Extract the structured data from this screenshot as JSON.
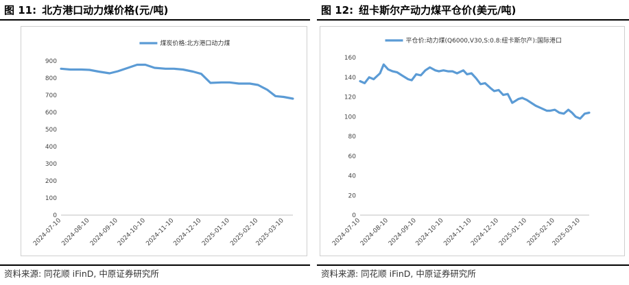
{
  "figures": [
    {
      "fig_no": "图 11:",
      "fig_title": "北方港口动力煤价格(元/吨)",
      "source": "资料来源: 同花顺 iFinD, 中原证券研究所"
    },
    {
      "fig_no": "图 12:",
      "fig_title": "纽卡斯尔产动力煤平仓价(美元/吨)",
      "source": "资料来源: 同花顺 iFinD, 中原证券研究所"
    }
  ],
  "chart_data": [
    {
      "type": "line",
      "title": "",
      "series": [
        {
          "name": "煤炭价格:北方港口动力煤",
          "color": "#5b9bd5",
          "x": [
            "2024-07-10",
            "2024-07-20",
            "2024-08-01",
            "2024-08-10",
            "2024-08-20",
            "2024-09-01",
            "2024-09-10",
            "2024-09-20",
            "2024-10-01",
            "2024-10-10",
            "2024-10-20",
            "2024-11-01",
            "2024-11-10",
            "2024-11-20",
            "2024-12-01",
            "2024-12-10",
            "2024-12-20",
            "2025-01-01",
            "2025-01-10",
            "2025-01-20",
            "2025-02-01",
            "2025-02-10",
            "2025-02-20",
            "2025-03-01",
            "2025-03-10",
            "2025-03-20"
          ],
          "values": [
            855,
            850,
            850,
            848,
            838,
            828,
            840,
            858,
            878,
            878,
            860,
            855,
            855,
            850,
            838,
            825,
            772,
            775,
            775,
            768,
            768,
            760,
            732,
            695,
            690,
            680
          ]
        }
      ],
      "ylim": [
        0,
        900
      ],
      "yticks": [
        0,
        100,
        200,
        300,
        400,
        500,
        600,
        700,
        800,
        900
      ],
      "xticks": [
        "2024-07-10",
        "2024-08-10",
        "2024-09-10",
        "2024-10-10",
        "2024-11-10",
        "2024-12-10",
        "2025-01-10",
        "2025-02-10",
        "2025-03-10"
      ],
      "legend": "top-center",
      "grid": false
    },
    {
      "type": "line",
      "title": "",
      "series": [
        {
          "name": "平仓价:动力煤(Q6000,V30,S:0.8:纽卡斯尔产):国际港口",
          "color": "#5b9bd5",
          "x": [
            "2024-07-10",
            "2024-07-15",
            "2024-07-20",
            "2024-07-25",
            "2024-08-01",
            "2024-08-05",
            "2024-08-10",
            "2024-08-15",
            "2024-08-20",
            "2024-08-25",
            "2024-09-01",
            "2024-09-05",
            "2024-09-10",
            "2024-09-15",
            "2024-09-20",
            "2024-09-25",
            "2024-10-01",
            "2024-10-05",
            "2024-10-10",
            "2024-10-15",
            "2024-10-20",
            "2024-10-25",
            "2024-11-01",
            "2024-11-05",
            "2024-11-10",
            "2024-11-15",
            "2024-11-20",
            "2024-11-25",
            "2024-12-01",
            "2024-12-05",
            "2024-12-10",
            "2024-12-15",
            "2024-12-20",
            "2024-12-25",
            "2025-01-01",
            "2025-01-05",
            "2025-01-10",
            "2025-01-15",
            "2025-01-20",
            "2025-01-25",
            "2025-02-01",
            "2025-02-05",
            "2025-02-10",
            "2025-02-15",
            "2025-02-20",
            "2025-02-25",
            "2025-03-01",
            "2025-03-05",
            "2025-03-10",
            "2025-03-15",
            "2025-03-20"
          ],
          "values": [
            136,
            134,
            140,
            138,
            144,
            153,
            148,
            146,
            145,
            142,
            138,
            137,
            143,
            142,
            147,
            150,
            147,
            146,
            147,
            146,
            146,
            144,
            147,
            143,
            144,
            139,
            133,
            134,
            129,
            126,
            127,
            122,
            123,
            114,
            118,
            119,
            117,
            114,
            111,
            109,
            106,
            106,
            107,
            104,
            103,
            107,
            104,
            100,
            98,
            103,
            104
          ]
        }
      ],
      "ylim": [
        0,
        160
      ],
      "yticks": [
        0,
        20,
        40,
        60,
        80,
        100,
        120,
        140,
        160
      ],
      "xticks": [
        "2024-07-10",
        "2024-08-10",
        "2024-09-10",
        "2024-10-10",
        "2024-11-10",
        "2024-12-10",
        "2025-01-10",
        "2025-02-10",
        "2025-03-10"
      ],
      "legend": "top-center",
      "grid": false
    }
  ]
}
